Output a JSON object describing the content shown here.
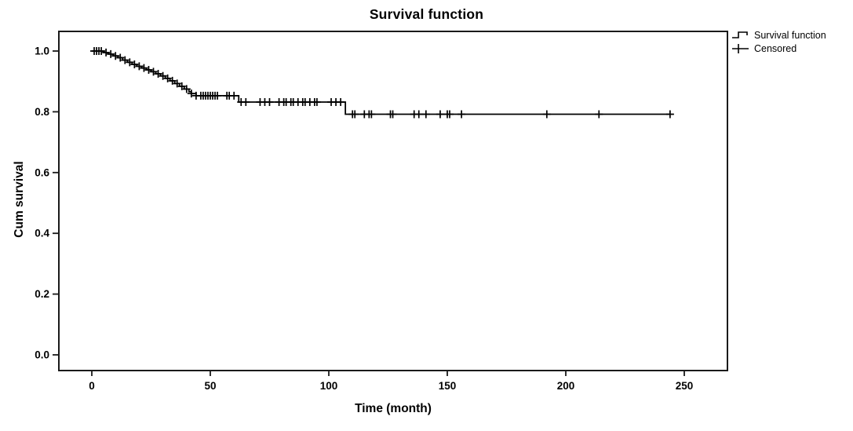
{
  "title": "Survival function",
  "legend": {
    "items": [
      {
        "label": "Survival function",
        "symbol": "step-line"
      },
      {
        "label": "Censored",
        "symbol": "plus-cross"
      }
    ]
  },
  "chart_data": {
    "type": "line",
    "variant": "kaplan_meier_step_function",
    "title": "Survival function",
    "xlabel": "Time (month)",
    "ylabel": "Cum survival",
    "xticks": [
      0,
      50,
      100,
      150,
      200,
      250
    ],
    "ytick_labels": [
      "0.0",
      "0.2",
      "0.4",
      "0.6",
      "0.8",
      "1.0"
    ],
    "xlim": [
      -14,
      268
    ],
    "ylim": [
      -0.05,
      1.06
    ],
    "grid": false,
    "legend_position": "top-right-outside",
    "line_color": "#000000",
    "frame_color": "#1a1a1a",
    "series": [
      {
        "name": "Survival function",
        "step_points": [
          [
            0,
            1.0
          ],
          [
            5,
            0.995
          ],
          [
            7,
            0.99
          ],
          [
            9,
            0.984
          ],
          [
            11,
            0.978
          ],
          [
            13,
            0.97
          ],
          [
            15,
            0.963
          ],
          [
            17,
            0.956
          ],
          [
            19,
            0.95
          ],
          [
            21,
            0.944
          ],
          [
            23,
            0.938
          ],
          [
            25,
            0.932
          ],
          [
            27,
            0.925
          ],
          [
            29,
            0.918
          ],
          [
            31,
            0.91
          ],
          [
            33,
            0.902
          ],
          [
            35,
            0.893
          ],
          [
            37,
            0.884
          ],
          [
            39,
            0.875
          ],
          [
            41,
            0.866
          ],
          [
            42,
            0.86
          ],
          [
            44,
            0.853
          ],
          [
            62,
            0.832
          ],
          [
            107,
            0.792
          ]
        ],
        "end_time": 244
      }
    ],
    "censored_times": [
      1,
      2,
      3,
      4,
      6,
      8,
      10,
      12,
      14,
      16,
      18,
      20,
      22,
      24,
      26,
      28,
      30,
      32,
      34,
      36,
      38,
      40,
      42,
      44,
      46,
      47,
      48,
      49,
      50,
      51,
      52,
      53,
      57,
      58,
      60,
      63,
      65,
      71,
      73,
      75,
      79,
      81,
      82,
      84,
      85,
      87,
      89,
      90,
      92,
      94,
      95,
      101,
      103,
      105,
      110,
      111,
      115,
      117,
      118,
      126,
      127,
      136,
      138,
      141,
      147,
      150,
      151,
      156,
      192,
      214,
      244
    ]
  }
}
